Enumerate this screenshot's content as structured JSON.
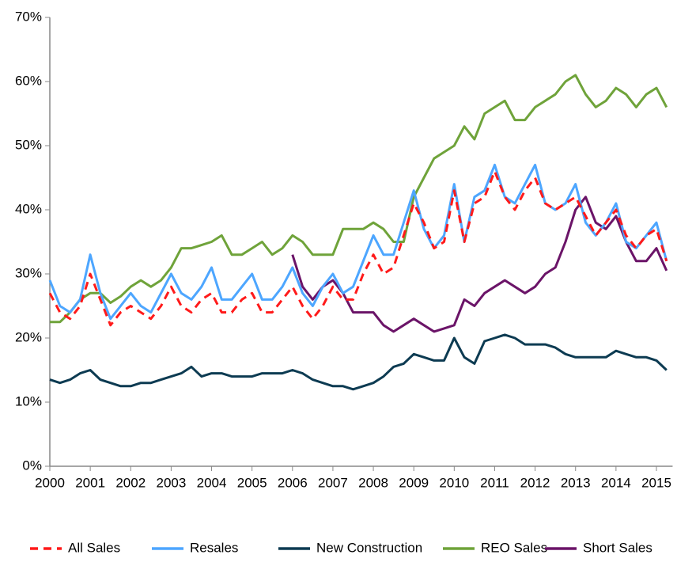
{
  "chart_data": {
    "type": "line",
    "x": [
      2000,
      2000.25,
      2000.5,
      2000.75,
      2001,
      2001.25,
      2001.5,
      2001.75,
      2002,
      2002.25,
      2002.5,
      2002.75,
      2003,
      2003.25,
      2003.5,
      2003.75,
      2004,
      2004.25,
      2004.5,
      2004.75,
      2005,
      2005.25,
      2005.5,
      2005.75,
      2006,
      2006.25,
      2006.5,
      2006.75,
      2007,
      2007.25,
      2007.5,
      2007.75,
      2008,
      2008.25,
      2008.5,
      2008.75,
      2009,
      2009.25,
      2009.5,
      2009.75,
      2010,
      2010.25,
      2010.5,
      2010.75,
      2011,
      2011.25,
      2011.5,
      2011.75,
      2012,
      2012.25,
      2012.5,
      2012.75,
      2013,
      2013.25,
      2013.5,
      2013.75,
      2014,
      2014.25,
      2014.5,
      2014.75,
      2015,
      2015.25
    ],
    "series": [
      {
        "name": "All Sales",
        "color": "#ff1a1a",
        "dashed": true,
        "values": [
          27,
          24,
          23,
          25,
          30,
          26,
          22,
          24,
          25,
          24,
          23,
          25,
          28,
          25,
          24,
          26,
          27,
          24,
          24,
          26,
          27,
          24,
          24,
          26,
          28,
          25,
          23,
          25,
          28,
          26,
          26,
          30,
          33,
          30,
          31,
          36,
          41,
          38,
          34,
          35,
          43,
          35,
          41,
          42,
          46,
          42,
          40,
          43,
          45,
          41,
          40,
          41,
          42,
          39,
          36,
          38,
          40,
          36,
          34,
          36,
          37,
          32
        ]
      },
      {
        "name": "Resales",
        "color": "#4da6ff",
        "dashed": false,
        "values": [
          29,
          25,
          24,
          26,
          33,
          27,
          23,
          25,
          27,
          25,
          24,
          27,
          30,
          27,
          26,
          28,
          31,
          26,
          26,
          28,
          30,
          26,
          26,
          28,
          31,
          27,
          25,
          28,
          30,
          27,
          28,
          32,
          36,
          33,
          33,
          38,
          43,
          37,
          34,
          36,
          44,
          35,
          42,
          43,
          47,
          42,
          41,
          44,
          47,
          41,
          40,
          41,
          44,
          38,
          36,
          38,
          41,
          35,
          34,
          36,
          38,
          32
        ]
      },
      {
        "name": "New Construction",
        "color": "#0d3b52",
        "dashed": false,
        "values": [
          13.5,
          13,
          13.5,
          14.5,
          15,
          13.5,
          13,
          12.5,
          12.5,
          13,
          13,
          13.5,
          14,
          14.5,
          15.5,
          14,
          14.5,
          14.5,
          14,
          14,
          14,
          14.5,
          14.5,
          14.5,
          15,
          14.5,
          13.5,
          13,
          12.5,
          12.5,
          12,
          12.5,
          13,
          14,
          15.5,
          16,
          17.5,
          17,
          16.5,
          16.5,
          20,
          17,
          16,
          19.5,
          20,
          20.5,
          20,
          19,
          19,
          19,
          18.5,
          17.5,
          17,
          17,
          17,
          17,
          18,
          17.5,
          17,
          17,
          16.5,
          15
        ]
      },
      {
        "name": "REO Sales",
        "color": "#6fa33a",
        "dashed": false,
        "values": [
          22.5,
          22.5,
          24,
          26,
          27,
          27,
          25.5,
          26.5,
          28,
          29,
          28,
          29,
          31,
          34,
          34,
          34.5,
          35,
          36,
          33,
          33,
          34,
          35,
          33,
          34,
          36,
          35,
          33,
          33,
          33,
          37,
          37,
          37,
          38,
          37,
          35,
          35,
          42,
          45,
          48,
          49,
          50,
          53,
          51,
          55,
          56,
          57,
          54,
          54,
          56,
          57,
          58,
          60,
          61,
          58,
          56,
          57,
          59,
          58,
          56,
          58,
          59,
          56
        ]
      },
      {
        "name": "Short Sales",
        "color": "#6b1468",
        "dashed": false,
        "values": [
          null,
          null,
          null,
          null,
          null,
          null,
          null,
          null,
          null,
          null,
          null,
          null,
          null,
          null,
          null,
          null,
          null,
          null,
          null,
          null,
          null,
          null,
          null,
          null,
          33,
          28,
          26,
          28,
          29,
          27,
          24,
          24,
          24,
          22,
          21,
          22,
          23,
          22,
          21,
          21.5,
          22,
          26,
          25,
          27,
          28,
          29,
          28,
          27,
          28,
          30,
          31,
          35,
          40,
          42,
          38,
          37,
          39,
          35,
          32,
          32,
          34,
          30.5
        ]
      }
    ],
    "xlim": [
      2000,
      2015.4
    ],
    "xticks": [
      2000,
      2001,
      2002,
      2003,
      2004,
      2005,
      2006,
      2007,
      2008,
      2009,
      2010,
      2011,
      2012,
      2013,
      2014,
      2015
    ],
    "ylim": [
      0,
      70
    ],
    "yticks": [
      {
        "value": 0,
        "label": "0%"
      },
      {
        "value": 10,
        "label": "10%"
      },
      {
        "value": 20,
        "label": "20%"
      },
      {
        "value": 30,
        "label": "30%"
      },
      {
        "value": 40,
        "label": "40%"
      },
      {
        "value": 50,
        "label": "50%"
      },
      {
        "value": 60,
        "label": "60%"
      },
      {
        "value": 70,
        "label": "70%"
      }
    ],
    "grid": false,
    "legend": "bottom"
  }
}
